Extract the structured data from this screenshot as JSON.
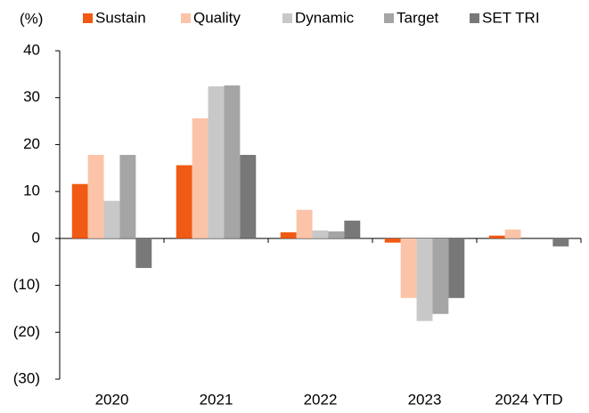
{
  "chart_data": {
    "type": "bar",
    "y_axis_label": "(%)",
    "categories": [
      "2020",
      "2021",
      "2022",
      "2023",
      "2024 YTD"
    ],
    "series": [
      {
        "name": "Sustain",
        "color": "#f05a14",
        "values": [
          11.6,
          15.6,
          1.3,
          -0.9,
          0.6
        ]
      },
      {
        "name": "Quality",
        "color": "#fbc4a8",
        "values": [
          17.8,
          25.6,
          6.1,
          -12.7,
          1.9
        ]
      },
      {
        "name": "Dynamic",
        "color": "#c8c8c8",
        "values": [
          8.0,
          32.4,
          1.7,
          -17.6,
          0
        ]
      },
      {
        "name": "Target",
        "color": "#a5a5a5",
        "values": [
          17.8,
          32.6,
          1.5,
          -16.1,
          0
        ]
      },
      {
        "name": "SET TRI",
        "color": "#787878",
        "values": [
          -6.3,
          17.8,
          3.8,
          -12.7,
          -1.7
        ]
      }
    ],
    "ylim": [
      -30,
      40
    ],
    "yticks": [
      {
        "value": -30,
        "label": "(30)"
      },
      {
        "value": -20,
        "label": "(20)"
      },
      {
        "value": -10,
        "label": "(10)"
      },
      0,
      10,
      20,
      30,
      40
    ],
    "legend": "top"
  }
}
